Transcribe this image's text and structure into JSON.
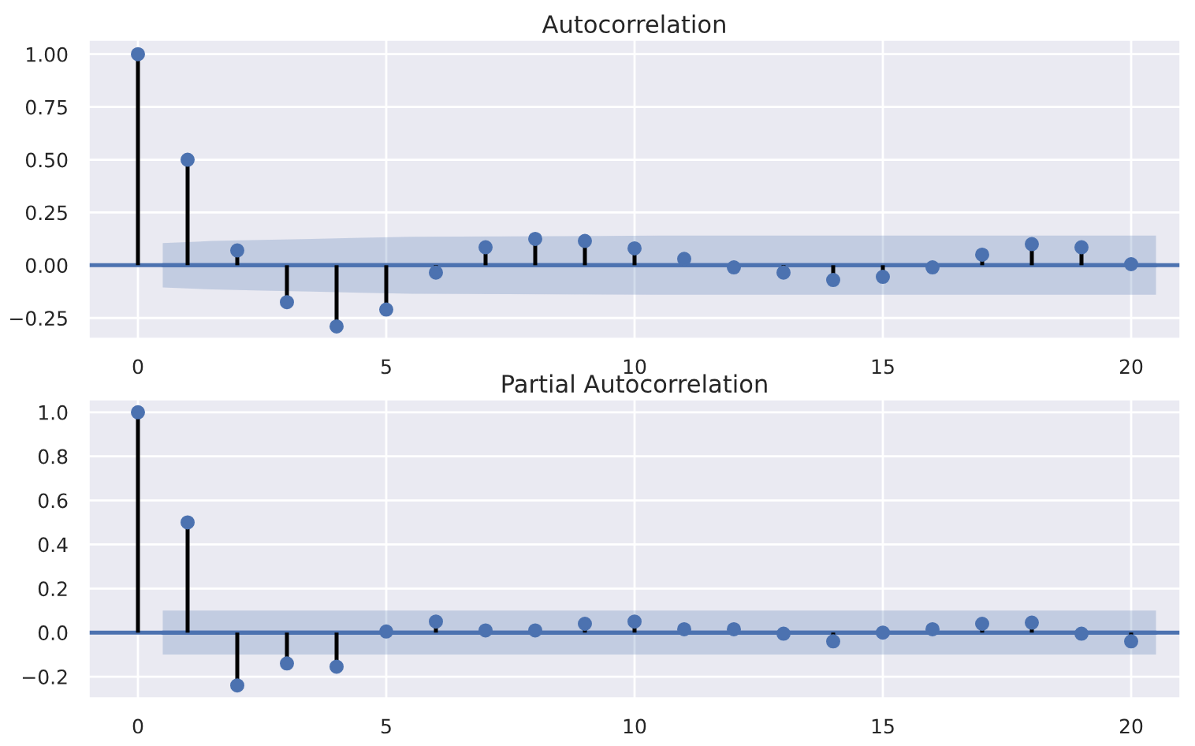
{
  "chart_data": [
    {
      "type": "lollipop",
      "title": "Autocorrelation",
      "xlim": [
        -1,
        21
      ],
      "xticks": [
        0,
        5,
        10,
        15,
        20
      ],
      "ylim": [
        -0.35,
        1.07
      ],
      "yticks": [
        {
          "value": -0.25,
          "label": "−0.25"
        },
        {
          "value": 0,
          "label": "0.00"
        },
        {
          "value": 0.25,
          "label": "0.25"
        },
        {
          "value": 0.5,
          "label": "0.50"
        },
        {
          "value": 0.75,
          "label": "0.75"
        },
        {
          "value": 1,
          "label": "1.00"
        }
      ],
      "grid": true,
      "marker": "circle",
      "ref_lines": [
        {
          "axis": "y",
          "value": 0,
          "color": "#4c72b0"
        }
      ],
      "series": [
        {
          "color": "#4c72b0",
          "x": [
            0,
            1,
            2,
            3,
            4,
            5,
            6,
            7,
            8,
            9,
            10,
            11,
            12,
            13,
            14,
            15,
            16,
            17,
            18,
            19,
            20
          ],
          "values": [
            1.0,
            0.5,
            0.07,
            -0.175,
            -0.29,
            -0.21,
            -0.035,
            0.085,
            0.125,
            0.115,
            0.08,
            0.03,
            -0.01,
            -0.035,
            -0.07,
            -0.055,
            -0.01,
            0.05,
            0.1,
            0.085,
            0.005
          ]
        },
        {
          "type": "line",
          "marker": "none",
          "color": "#4c72b0",
          "x": [
            0.5,
            1.5,
            2.5,
            3.5,
            4.5,
            5.5,
            10.5,
            20.5
          ],
          "values": [
            0,
            0,
            0,
            0,
            0,
            0,
            0,
            0
          ],
          "lower": [
            -0.105,
            -0.115,
            -0.12,
            -0.125,
            -0.13,
            -0.135,
            -0.14,
            -0.14
          ],
          "upper": [
            0.105,
            0.115,
            0.12,
            0.125,
            0.13,
            0.135,
            0.14,
            0.14
          ]
        }
      ]
    },
    {
      "type": "lollipop",
      "title": "Partial Autocorrelation",
      "xlim": [
        -1,
        21
      ],
      "xticks": [
        0,
        5,
        10,
        15,
        20
      ],
      "ylim": [
        -0.3,
        1.06
      ],
      "yticks": [
        {
          "value": -0.2,
          "label": "−0.2"
        },
        {
          "value": 0,
          "label": "0.0"
        },
        0.2,
        0.4,
        0.6,
        0.8,
        {
          "value": 1,
          "label": "1.0"
        }
      ],
      "grid": true,
      "marker": "circle",
      "ref_lines": [
        {
          "axis": "y",
          "value": 0,
          "color": "#4c72b0"
        }
      ],
      "series": [
        {
          "color": "#4c72b0",
          "x": [
            0,
            1,
            2,
            3,
            4,
            5,
            6,
            7,
            8,
            9,
            10,
            11,
            12,
            13,
            14,
            15,
            16,
            17,
            18,
            19,
            20
          ],
          "values": [
            1.0,
            0.5,
            -0.24,
            -0.14,
            -0.155,
            0.005,
            0.05,
            0.01,
            0.01,
            0.04,
            0.05,
            0.015,
            0.015,
            -0.005,
            -0.04,
            0.0,
            0.015,
            0.04,
            0.045,
            -0.005,
            -0.04
          ]
        },
        {
          "type": "line",
          "marker": "none",
          "color": "#4c72b0",
          "x": [
            0.5,
            20.5
          ],
          "values": [
            0,
            0
          ],
          "lower": [
            -0.1,
            -0.1
          ],
          "upper": [
            0.1,
            0.1
          ]
        }
      ]
    }
  ]
}
